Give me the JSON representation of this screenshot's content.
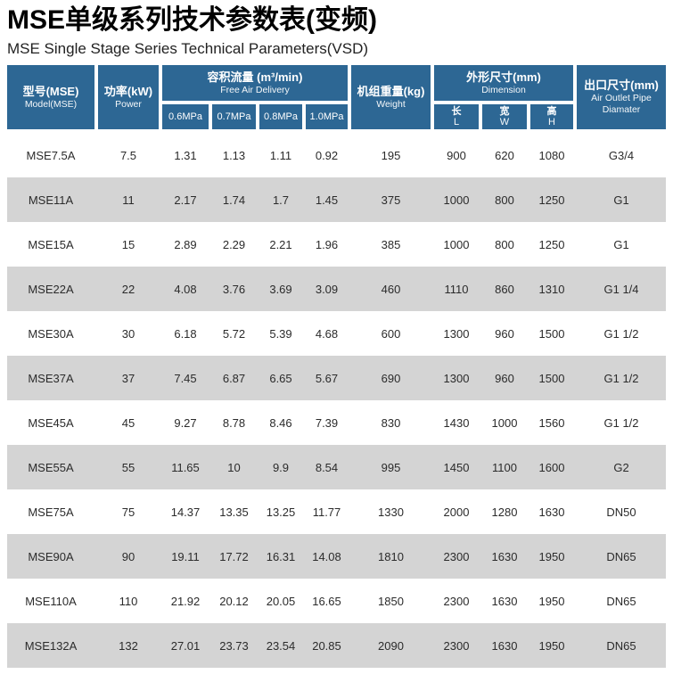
{
  "header": {
    "title_zh": "MSE单级系列技术参数表(变频)",
    "subtitle_en": "MSE Single Stage Series Technical Parameters(VSD)"
  },
  "colors": {
    "header_bg": "#2d6794",
    "alt_row_bg": "#d4d4d4",
    "data_text": "#2b2b2b"
  },
  "table": {
    "header": {
      "model": {
        "zh": "型号(MSE)",
        "en": "Model(MSE)"
      },
      "power": {
        "zh": "功率(kW)",
        "en": "Power"
      },
      "fad": {
        "zh": "容积流量 (m³/min)",
        "en": "Free Air Delivery",
        "sub": [
          "0.6MPa",
          "0.7MPa",
          "0.8MPa",
          "1.0MPa"
        ]
      },
      "weight": {
        "zh": "机组重量(kg)",
        "en": "Weight"
      },
      "dimension": {
        "zh": "外形尺寸(mm)",
        "en": "Dimension",
        "sub": [
          {
            "zh": "长",
            "en": "L"
          },
          {
            "zh": "宽",
            "en": "W"
          },
          {
            "zh": "高",
            "en": "H"
          }
        ]
      },
      "outlet": {
        "zh": "出口尺寸(mm)",
        "en": "Air Outlet Pipe Diamater"
      }
    },
    "rows": [
      [
        "MSE7.5A",
        "7.5",
        "1.31",
        "1.13",
        "1.11",
        "0.92",
        "195",
        "900",
        "620",
        "1080",
        "G3/4"
      ],
      [
        "MSE11A",
        "11",
        "2.17",
        "1.74",
        "1.7",
        "1.45",
        "375",
        "1000",
        "800",
        "1250",
        "G1"
      ],
      [
        "MSE15A",
        "15",
        "2.89",
        "2.29",
        "2.21",
        "1.96",
        "385",
        "1000",
        "800",
        "1250",
        "G1"
      ],
      [
        "MSE22A",
        "22",
        "4.08",
        "3.76",
        "3.69",
        "3.09",
        "460",
        "1110",
        "860",
        "1310",
        "G1 1/4"
      ],
      [
        "MSE30A",
        "30",
        "6.18",
        "5.72",
        "5.39",
        "4.68",
        "600",
        "1300",
        "960",
        "1500",
        "G1 1/2"
      ],
      [
        "MSE37A",
        "37",
        "7.45",
        "6.87",
        "6.65",
        "5.67",
        "690",
        "1300",
        "960",
        "1500",
        "G1 1/2"
      ],
      [
        "MSE45A",
        "45",
        "9.27",
        "8.78",
        "8.46",
        "7.39",
        "830",
        "1430",
        "1000",
        "1560",
        "G1 1/2"
      ],
      [
        "MSE55A",
        "55",
        "11.65",
        "10",
        "9.9",
        "8.54",
        "995",
        "1450",
        "1100",
        "1600",
        "G2"
      ],
      [
        "MSE75A",
        "75",
        "14.37",
        "13.35",
        "13.25",
        "11.77",
        "1330",
        "2000",
        "1280",
        "1630",
        "DN50"
      ],
      [
        "MSE90A",
        "90",
        "19.11",
        "17.72",
        "16.31",
        "14.08",
        "1810",
        "2300",
        "1630",
        "1950",
        "DN65"
      ],
      [
        "MSE110A",
        "110",
        "21.92",
        "20.12",
        "20.05",
        "16.65",
        "1850",
        "2300",
        "1630",
        "1950",
        "DN65"
      ],
      [
        "MSE132A",
        "132",
        "27.01",
        "23.73",
        "23.54",
        "20.85",
        "2090",
        "2300",
        "1630",
        "1950",
        "DN65"
      ]
    ]
  }
}
